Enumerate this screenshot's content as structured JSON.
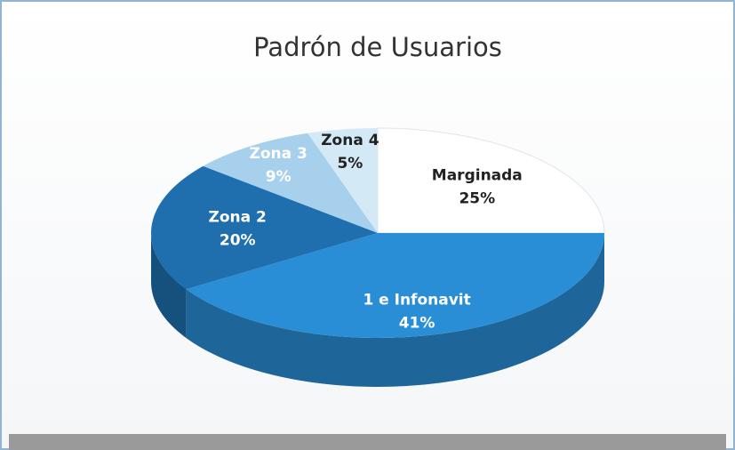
{
  "chart_data": {
    "type": "pie",
    "title": "Padrón de Usuarios",
    "categories": [
      "Marginada",
      "1 e Infonavit",
      "Zona 2",
      "Zona 3",
      "Zona 4"
    ],
    "values": [
      25,
      41,
      20,
      9,
      5
    ],
    "value_labels": [
      "25%",
      "41%",
      "20%",
      "9%",
      "5%"
    ],
    "colors": [
      "#ffffff",
      "#2a8ed6",
      "#1f6fae",
      "#a6d0ec",
      "#d4e9f6"
    ]
  }
}
